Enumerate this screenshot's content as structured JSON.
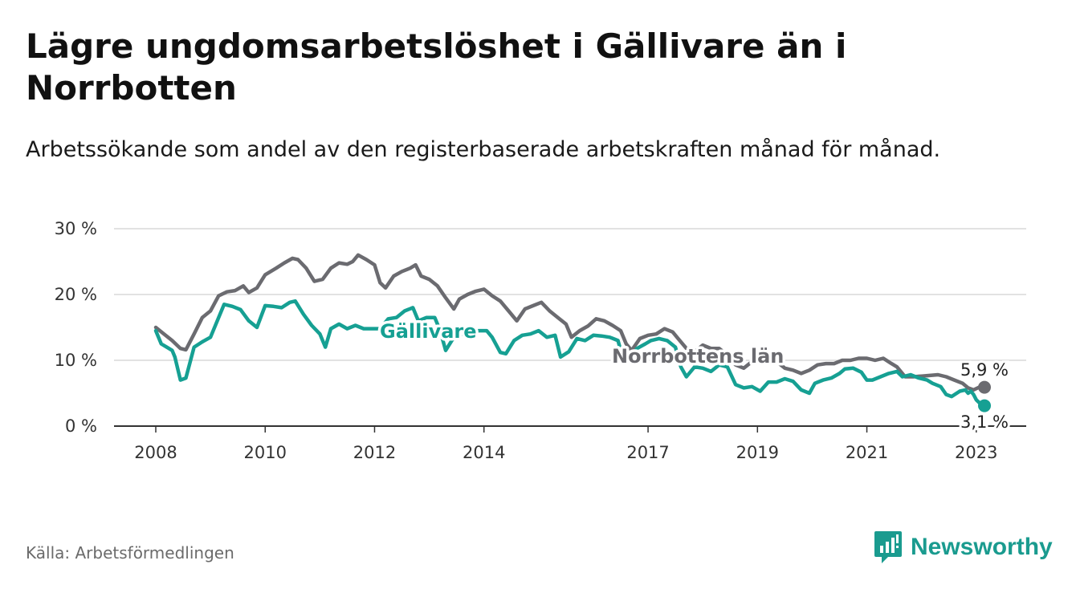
{
  "header": {
    "title": "Lägre ungdomsarbetslöshet i Gällivare än i Norrbotten",
    "subtitle": "Arbetssökande som andel av den registerbaserade arbetskraften månad för månad."
  },
  "footer": {
    "source": "Källa: Arbetsförmedlingen",
    "brand": "Newsworthy"
  },
  "colors": {
    "gallivare": "#16a093",
    "norrbotten": "#6b6b70",
    "grid": "#d9d9d9",
    "axis": "#333333",
    "brand": "#1a9b8f"
  },
  "chart_data": {
    "type": "line",
    "title": "Lägre ungdomsarbetslöshet i Gällivare än i Norrbotten",
    "subtitle": "Arbetssökande som andel av den registerbaserade arbetskraften månad för månad.",
    "xlabel": "",
    "ylabel": "",
    "x_range": [
      2008.0,
      2023.15
    ],
    "ylim": [
      0,
      30
    ],
    "y_ticks": [
      0,
      10,
      20,
      30
    ],
    "y_tick_labels": [
      "0 %",
      "10 %",
      "20 %",
      "30 %"
    ],
    "x_ticks": [
      2008,
      2010,
      2012,
      2014,
      2017,
      2019,
      2021,
      2023
    ],
    "x_tick_labels": [
      "2008",
      "2010",
      "2012",
      "2014",
      "2017",
      "2019",
      "2021",
      "2023"
    ],
    "grid": true,
    "series": [
      {
        "name": "Norrbottens län",
        "label": "Norrbottens län",
        "end_value": 5.9,
        "end_label": "5,9 %",
        "points": [
          [
            2008.0,
            15.0
          ],
          [
            2008.15,
            14.0
          ],
          [
            2008.3,
            13.0
          ],
          [
            2008.45,
            11.8
          ],
          [
            2008.55,
            11.6
          ],
          [
            2008.7,
            14.0
          ],
          [
            2008.85,
            16.5
          ],
          [
            2009.0,
            17.5
          ],
          [
            2009.15,
            19.8
          ],
          [
            2009.3,
            20.4
          ],
          [
            2009.45,
            20.6
          ],
          [
            2009.6,
            21.3
          ],
          [
            2009.7,
            20.3
          ],
          [
            2009.85,
            21.0
          ],
          [
            2010.0,
            23.0
          ],
          [
            2010.2,
            24.0
          ],
          [
            2010.35,
            24.8
          ],
          [
            2010.5,
            25.5
          ],
          [
            2010.6,
            25.3
          ],
          [
            2010.75,
            24.0
          ],
          [
            2010.9,
            22.0
          ],
          [
            2011.05,
            22.3
          ],
          [
            2011.2,
            24.0
          ],
          [
            2011.35,
            24.8
          ],
          [
            2011.5,
            24.6
          ],
          [
            2011.6,
            25.0
          ],
          [
            2011.7,
            26.0
          ],
          [
            2011.85,
            25.3
          ],
          [
            2012.0,
            24.5
          ],
          [
            2012.1,
            21.8
          ],
          [
            2012.2,
            21.0
          ],
          [
            2012.35,
            22.8
          ],
          [
            2012.5,
            23.5
          ],
          [
            2012.65,
            24.0
          ],
          [
            2012.75,
            24.5
          ],
          [
            2012.85,
            22.8
          ],
          [
            2013.0,
            22.3
          ],
          [
            2013.15,
            21.3
          ],
          [
            2013.3,
            19.5
          ],
          [
            2013.45,
            17.8
          ],
          [
            2013.55,
            19.3
          ],
          [
            2013.7,
            20.0
          ],
          [
            2013.85,
            20.5
          ],
          [
            2014.0,
            20.8
          ],
          [
            2014.15,
            19.8
          ],
          [
            2014.3,
            19.0
          ],
          [
            2014.45,
            17.5
          ],
          [
            2014.6,
            16.0
          ],
          [
            2014.75,
            17.8
          ],
          [
            2014.9,
            18.3
          ],
          [
            2015.05,
            18.8
          ],
          [
            2015.2,
            17.5
          ],
          [
            2015.35,
            16.5
          ],
          [
            2015.5,
            15.5
          ],
          [
            2015.6,
            13.5
          ],
          [
            2015.75,
            14.5
          ],
          [
            2015.9,
            15.2
          ],
          [
            2016.05,
            16.3
          ],
          [
            2016.2,
            16.0
          ],
          [
            2016.35,
            15.3
          ],
          [
            2016.5,
            14.5
          ],
          [
            2016.6,
            12.5
          ],
          [
            2016.7,
            11.5
          ],
          [
            2016.85,
            13.3
          ],
          [
            2017.0,
            13.8
          ],
          [
            2017.15,
            14.0
          ],
          [
            2017.3,
            14.8
          ],
          [
            2017.45,
            14.3
          ],
          [
            2017.55,
            13.3
          ],
          [
            2017.7,
            11.8
          ],
          [
            2017.85,
            11.3
          ],
          [
            2018.0,
            12.3
          ],
          [
            2018.15,
            11.8
          ],
          [
            2018.3,
            11.8
          ],
          [
            2018.45,
            10.8
          ],
          [
            2018.6,
            9.3
          ],
          [
            2018.75,
            8.8
          ],
          [
            2018.9,
            9.8
          ],
          [
            2019.05,
            10.3
          ],
          [
            2019.2,
            10.3
          ],
          [
            2019.35,
            9.8
          ],
          [
            2019.5,
            8.8
          ],
          [
            2019.65,
            8.5
          ],
          [
            2019.8,
            8.0
          ],
          [
            2019.95,
            8.5
          ],
          [
            2020.1,
            9.3
          ],
          [
            2020.25,
            9.5
          ],
          [
            2020.4,
            9.5
          ],
          [
            2020.55,
            10.0
          ],
          [
            2020.7,
            10.0
          ],
          [
            2020.85,
            10.3
          ],
          [
            2021.0,
            10.3
          ],
          [
            2021.15,
            10.0
          ],
          [
            2021.3,
            10.3
          ],
          [
            2021.45,
            9.5
          ],
          [
            2021.55,
            9.0
          ],
          [
            2021.7,
            7.5
          ],
          [
            2021.85,
            7.5
          ],
          [
            2022.0,
            7.6
          ],
          [
            2022.15,
            7.7
          ],
          [
            2022.3,
            7.8
          ],
          [
            2022.45,
            7.5
          ],
          [
            2022.6,
            7.0
          ],
          [
            2022.75,
            6.5
          ],
          [
            2022.85,
            5.8
          ],
          [
            2022.95,
            5.5
          ],
          [
            2023.05,
            5.9
          ],
          [
            2023.15,
            5.9
          ]
        ]
      },
      {
        "name": "Gällivare",
        "label": "Gällivare",
        "end_value": 3.1,
        "end_label": "3,1 %",
        "points": [
          [
            2008.0,
            14.5
          ],
          [
            2008.1,
            12.5
          ],
          [
            2008.2,
            12.0
          ],
          [
            2008.3,
            11.5
          ],
          [
            2008.35,
            10.5
          ],
          [
            2008.45,
            7.0
          ],
          [
            2008.55,
            7.3
          ],
          [
            2008.7,
            12.0
          ],
          [
            2008.85,
            12.8
          ],
          [
            2009.0,
            13.5
          ],
          [
            2009.15,
            16.5
          ],
          [
            2009.25,
            18.5
          ],
          [
            2009.4,
            18.2
          ],
          [
            2009.55,
            17.7
          ],
          [
            2009.7,
            16.0
          ],
          [
            2009.85,
            15.0
          ],
          [
            2010.0,
            18.3
          ],
          [
            2010.15,
            18.2
          ],
          [
            2010.3,
            18.0
          ],
          [
            2010.45,
            18.8
          ],
          [
            2010.55,
            19.0
          ],
          [
            2010.7,
            17.0
          ],
          [
            2010.85,
            15.3
          ],
          [
            2011.0,
            14.0
          ],
          [
            2011.1,
            12.0
          ],
          [
            2011.2,
            14.8
          ],
          [
            2011.35,
            15.5
          ],
          [
            2011.5,
            14.8
          ],
          [
            2011.65,
            15.3
          ],
          [
            2011.8,
            14.8
          ],
          [
            2011.95,
            14.8
          ],
          [
            2012.1,
            14.8
          ],
          [
            2012.25,
            16.3
          ],
          [
            2012.4,
            16.5
          ],
          [
            2012.55,
            17.5
          ],
          [
            2012.7,
            18.0
          ],
          [
            2012.8,
            16.0
          ],
          [
            2012.95,
            16.5
          ],
          [
            2013.1,
            16.5
          ],
          [
            2013.2,
            14.5
          ],
          [
            2013.3,
            11.5
          ],
          [
            2013.45,
            13.5
          ],
          [
            2013.6,
            14.0
          ],
          [
            2013.75,
            14.0
          ],
          [
            2013.9,
            14.5
          ],
          [
            2014.05,
            14.5
          ],
          [
            2014.15,
            13.5
          ],
          [
            2014.3,
            11.2
          ],
          [
            2014.4,
            11.0
          ],
          [
            2014.55,
            13.0
          ],
          [
            2014.7,
            13.8
          ],
          [
            2014.85,
            14.0
          ],
          [
            2015.0,
            14.5
          ],
          [
            2015.15,
            13.5
          ],
          [
            2015.3,
            13.8
          ],
          [
            2015.4,
            10.5
          ],
          [
            2015.55,
            11.3
          ],
          [
            2015.7,
            13.3
          ],
          [
            2015.85,
            13.0
          ],
          [
            2016.0,
            13.8
          ],
          [
            2016.15,
            13.7
          ],
          [
            2016.3,
            13.5
          ],
          [
            2016.45,
            13.0
          ],
          [
            2016.55,
            10.0
          ],
          [
            2016.65,
            10.0
          ],
          [
            2016.8,
            11.8
          ],
          [
            2016.95,
            12.5
          ],
          [
            2017.05,
            13.0
          ],
          [
            2017.2,
            13.3
          ],
          [
            2017.35,
            13.0
          ],
          [
            2017.5,
            12.0
          ],
          [
            2017.6,
            9.0
          ],
          [
            2017.7,
            7.5
          ],
          [
            2017.85,
            9.0
          ],
          [
            2018.0,
            8.8
          ],
          [
            2018.15,
            8.3
          ],
          [
            2018.3,
            9.3
          ],
          [
            2018.45,
            9.0
          ],
          [
            2018.6,
            6.3
          ],
          [
            2018.75,
            5.8
          ],
          [
            2018.9,
            6.0
          ],
          [
            2019.05,
            5.3
          ],
          [
            2019.2,
            6.7
          ],
          [
            2019.35,
            6.7
          ],
          [
            2019.5,
            7.2
          ],
          [
            2019.65,
            6.8
          ],
          [
            2019.8,
            5.5
          ],
          [
            2019.95,
            5.0
          ],
          [
            2020.05,
            6.5
          ],
          [
            2020.2,
            7.0
          ],
          [
            2020.35,
            7.3
          ],
          [
            2020.5,
            8.0
          ],
          [
            2020.6,
            8.7
          ],
          [
            2020.75,
            8.8
          ],
          [
            2020.9,
            8.2
          ],
          [
            2021.0,
            7.0
          ],
          [
            2021.1,
            7.0
          ],
          [
            2021.25,
            7.5
          ],
          [
            2021.4,
            8.0
          ],
          [
            2021.55,
            8.3
          ],
          [
            2021.65,
            7.5
          ],
          [
            2021.8,
            7.8
          ],
          [
            2021.95,
            7.3
          ],
          [
            2022.1,
            7.0
          ],
          [
            2022.2,
            6.5
          ],
          [
            2022.35,
            6.0
          ],
          [
            2022.45,
            4.8
          ],
          [
            2022.55,
            4.5
          ],
          [
            2022.7,
            5.3
          ],
          [
            2022.8,
            5.5
          ],
          [
            2022.85,
            5.0
          ],
          [
            2022.9,
            5.3
          ],
          [
            2022.95,
            4.8
          ],
          [
            2023.0,
            4.0
          ],
          [
            2023.05,
            3.6
          ],
          [
            2023.1,
            3.3
          ],
          [
            2023.15,
            3.1
          ]
        ]
      }
    ]
  }
}
